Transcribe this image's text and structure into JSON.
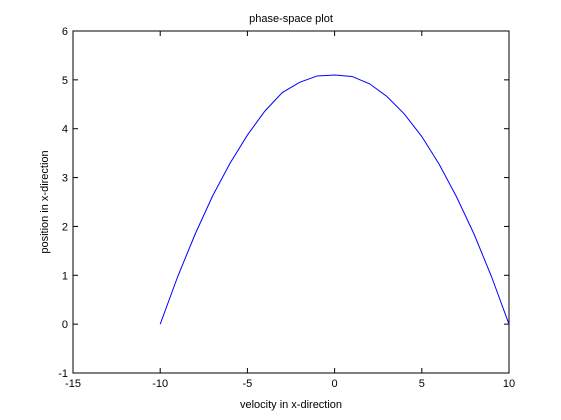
{
  "chart_data": {
    "type": "line",
    "title": "phase-space plot",
    "xlabel": "velocity in x-direction",
    "ylabel": "position in x-direction",
    "xlim": [
      -15,
      10
    ],
    "ylim": [
      -1,
      6
    ],
    "xticks": [
      -15,
      -10,
      -5,
      0,
      5,
      10
    ],
    "yticks": [
      -1,
      0,
      1,
      2,
      3,
      4,
      5,
      6
    ],
    "grid": false,
    "line_color": "#0000ff",
    "series": [
      {
        "x": [
          -10,
          -9,
          -8,
          -7,
          -6,
          -5,
          -4,
          -3,
          -2,
          -1,
          0,
          1,
          2,
          3,
          4,
          5,
          6,
          7,
          8,
          9,
          10
        ],
        "y": [
          0.0,
          0.97,
          1.84,
          2.62,
          3.29,
          3.87,
          4.36,
          4.74,
          4.95,
          5.08,
          5.1,
          5.07,
          4.92,
          4.66,
          4.3,
          3.84,
          3.27,
          2.6,
          1.84,
          0.97,
          0.0
        ]
      }
    ]
  }
}
